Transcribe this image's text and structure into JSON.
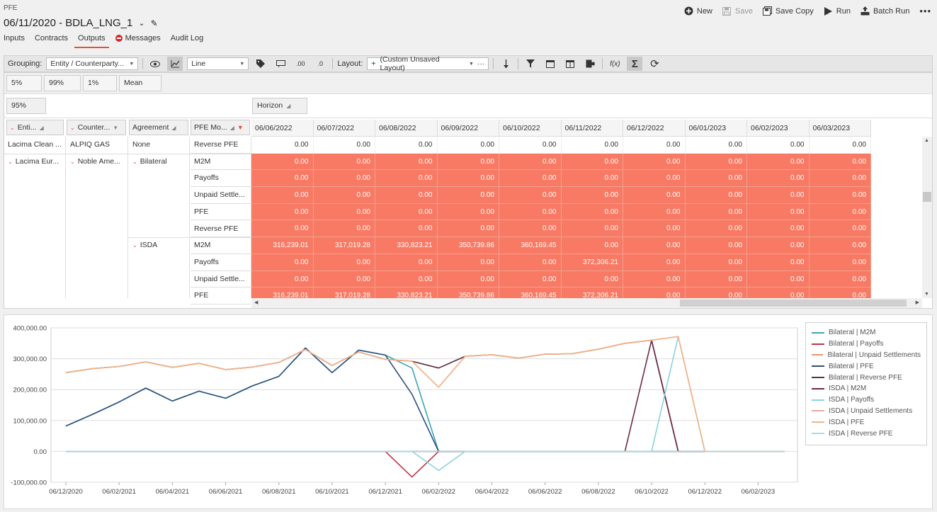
{
  "app_name": "PFE",
  "doc_title": "06/11/2020 - BDLA_LNG_1",
  "actions": [
    {
      "label": "New",
      "icon": "plus-circle-icon",
      "disabled": false
    },
    {
      "label": "Save",
      "icon": "floppy-disk-icon",
      "disabled": true
    },
    {
      "label": "Save Copy",
      "icon": "save-copy-icon",
      "disabled": false
    },
    {
      "label": "Run",
      "icon": "play-icon",
      "disabled": false
    },
    {
      "label": "Batch Run",
      "icon": "batch-run-icon",
      "disabled": false
    }
  ],
  "tabs": [
    {
      "label": "Inputs"
    },
    {
      "label": "Contracts"
    },
    {
      "label": "Outputs",
      "active": true
    },
    {
      "label": "Messages",
      "icon": "error-icon"
    },
    {
      "label": "Audit Log"
    }
  ],
  "toolbar": {
    "grouping_label": "Grouping:",
    "grouping_value": "Entity / Counterparty...",
    "chart_type_value": "Line",
    "layout_label": "Layout:",
    "layout_value": "(Custom Unsaved Layout)"
  },
  "percentiles": [
    "5%",
    "99%",
    "1%",
    "Mean"
  ],
  "selected_percentile": "95%",
  "horizon_label": "Horizon",
  "row_headers": [
    "Enti...",
    "Counter...",
    "Agreement",
    "PFE Mo..."
  ],
  "columns": [
    "06/06/2022",
    "06/07/2022",
    "06/08/2022",
    "06/09/2022",
    "06/10/2022",
    "06/11/2022",
    "06/12/2022",
    "06/01/2023",
    "06/02/2023",
    "06/03/2023"
  ],
  "group_labels": {
    "entity_1": "Lacima Clean ...",
    "counterparty_1": "ALPIQ GAS",
    "agreement_1": "None",
    "entity_2": "Lacima Eur...",
    "counterparty_2": "Noble Ame...",
    "agreement_bilateral": "Bilateral",
    "agreement_isda": "ISDA"
  },
  "rows": [
    {
      "measure": "Reverse PFE",
      "highlight": false,
      "values": [
        "0.00",
        "0.00",
        "0.00",
        "0.00",
        "0.00",
        "0.00",
        "0.00",
        "0.00",
        "0.00",
        "0.00"
      ]
    },
    {
      "measure": "M2M",
      "highlight": true,
      "values": [
        "0.00",
        "0.00",
        "0.00",
        "0.00",
        "0.00",
        "0.00",
        "0.00",
        "0.00",
        "0.00",
        "0.00"
      ]
    },
    {
      "measure": "Payoffs",
      "highlight": true,
      "values": [
        "0.00",
        "0.00",
        "0.00",
        "0.00",
        "0.00",
        "0.00",
        "0.00",
        "0.00",
        "0.00",
        "0.00"
      ]
    },
    {
      "measure": "Unpaid Settle...",
      "highlight": true,
      "values": [
        "0.00",
        "0.00",
        "0.00",
        "0.00",
        "0.00",
        "0.00",
        "0.00",
        "0.00",
        "0.00",
        "0.00"
      ]
    },
    {
      "measure": "PFE",
      "highlight": true,
      "values": [
        "0.00",
        "0.00",
        "0.00",
        "0.00",
        "0.00",
        "0.00",
        "0.00",
        "0.00",
        "0.00",
        "0.00"
      ]
    },
    {
      "measure": "Reverse PFE",
      "highlight": true,
      "values": [
        "0.00",
        "0.00",
        "0.00",
        "0.00",
        "0.00",
        "0.00",
        "0.00",
        "0.00",
        "0.00",
        "0.00"
      ]
    },
    {
      "measure": "M2M",
      "highlight": true,
      "values": [
        "316,239.01",
        "317,019.28",
        "330,823.21",
        "350,739.86",
        "360,169.45",
        "0.00",
        "0.00",
        "0.00",
        "0.00",
        "0.00"
      ]
    },
    {
      "measure": "Payoffs",
      "highlight": true,
      "values": [
        "0.00",
        "0.00",
        "0.00",
        "0.00",
        "0.00",
        "372,306.21",
        "0.00",
        "0.00",
        "0.00",
        "0.00"
      ]
    },
    {
      "measure": "Unpaid Settle...",
      "highlight": true,
      "values": [
        "0.00",
        "0.00",
        "0.00",
        "0.00",
        "0.00",
        "0.00",
        "0.00",
        "0.00",
        "0.00",
        "0.00"
      ]
    },
    {
      "measure": "PFE",
      "highlight": true,
      "values": [
        "316,239.01",
        "317,019.28",
        "330,823.21",
        "350,739.86",
        "360,169.45",
        "372,306.21",
        "0.00",
        "0.00",
        "0.00",
        "0.00"
      ]
    }
  ],
  "chart_data": {
    "type": "line",
    "x": [
      "06/12/2020",
      "06/01/2021",
      "06/02/2021",
      "06/03/2021",
      "06/04/2021",
      "06/05/2021",
      "06/06/2021",
      "06/07/2021",
      "06/08/2021",
      "06/09/2021",
      "06/10/2021",
      "06/11/2021",
      "06/12/2021",
      "06/01/2022",
      "06/02/2022",
      "06/03/2022",
      "06/04/2022",
      "06/05/2022",
      "06/06/2022",
      "06/07/2022",
      "06/08/2022",
      "06/09/2022",
      "06/10/2022",
      "06/11/2022",
      "06/12/2022",
      "06/01/2023",
      "06/02/2023",
      "06/03/2023"
    ],
    "x_tick_labels": [
      "06/12/2020",
      "06/02/2021",
      "06/04/2021",
      "06/06/2021",
      "06/08/2021",
      "06/10/2021",
      "06/12/2021",
      "06/02/2022",
      "06/04/2022",
      "06/06/2022",
      "06/08/2022",
      "06/10/2022",
      "06/12/2022",
      "06/02/2023"
    ],
    "y_tick_labels": [
      "400,000.00",
      "300,000.00",
      "200,000.00",
      "100,000.00",
      "0.00",
      "-100,000.00"
    ],
    "ylim": [
      -100000,
      400000
    ],
    "legend_position": "right",
    "series": [
      {
        "name": "Bilateral | M2M",
        "color": "#3aa5b5",
        "values": [
          82000,
          120000,
          160000,
          205000,
          163000,
          195000,
          172000,
          212000,
          243000,
          335000,
          255000,
          328000,
          312000,
          270000,
          0,
          0,
          0,
          0,
          0,
          0,
          0,
          0,
          0,
          0,
          0,
          0,
          0,
          0
        ]
      },
      {
        "name": "Bilateral | Payoffs",
        "color": "#c0323f",
        "values": [
          0,
          0,
          0,
          0,
          0,
          0,
          0,
          0,
          0,
          0,
          0,
          0,
          0,
          -83000,
          0,
          0,
          0,
          0,
          0,
          0,
          0,
          0,
          0,
          0,
          0,
          0,
          0,
          0
        ]
      },
      {
        "name": "Bilateral | Unpaid Settlements",
        "color": "#e8946a",
        "values": [
          255000,
          268000,
          275000,
          290000,
          272000,
          285000,
          265000,
          273000,
          288000,
          330000,
          278000,
          322000,
          298000,
          292000,
          270000,
          308000,
          313000,
          302000,
          315000,
          316000,
          331000,
          350000,
          360000,
          0,
          0,
          0,
          0,
          0
        ]
      },
      {
        "name": "Bilateral | PFE",
        "color": "#2c4f7c",
        "values": [
          82000,
          120000,
          160000,
          205000,
          163000,
          195000,
          172000,
          212000,
          243000,
          335000,
          255000,
          328000,
          312000,
          185000,
          0,
          0,
          0,
          0,
          0,
          0,
          0,
          0,
          0,
          0,
          0,
          0,
          0,
          0
        ]
      },
      {
        "name": "Bilateral | Reverse PFE",
        "color": "#5a3248",
        "values": [
          255000,
          268000,
          275000,
          290000,
          272000,
          285000,
          265000,
          273000,
          288000,
          330000,
          278000,
          322000,
          298000,
          292000,
          270000,
          308000,
          313000,
          302000,
          315000,
          316000,
          331000,
          350000,
          360000,
          0,
          0,
          0,
          0,
          0
        ]
      },
      {
        "name": "ISDA | M2M",
        "color": "#6b2d45",
        "values": [
          0,
          0,
          0,
          0,
          0,
          0,
          0,
          0,
          0,
          0,
          0,
          0,
          0,
          0,
          0,
          0,
          0,
          0,
          0,
          0,
          0,
          0,
          360000,
          0,
          0,
          0,
          0,
          0
        ]
      },
      {
        "name": "ISDA | Payoffs",
        "color": "#8ad3e0",
        "values": [
          0,
          0,
          0,
          0,
          0,
          0,
          0,
          0,
          0,
          0,
          0,
          0,
          0,
          0,
          -62000,
          0,
          0,
          0,
          0,
          0,
          0,
          0,
          0,
          372000,
          0,
          0,
          0,
          0
        ]
      },
      {
        "name": "ISDA | Unpaid Settlements",
        "color": "#f0a8a0",
        "values": [
          255000,
          268000,
          275000,
          290000,
          272000,
          285000,
          265000,
          273000,
          288000,
          330000,
          278000,
          322000,
          298000,
          292000,
          208000,
          308000,
          313000,
          302000,
          315000,
          316000,
          331000,
          350000,
          360000,
          372000,
          0,
          0,
          0,
          0
        ]
      },
      {
        "name": "ISDA | PFE",
        "color": "#f2b58a",
        "values": [
          255000,
          268000,
          275000,
          290000,
          272000,
          285000,
          265000,
          273000,
          288000,
          330000,
          278000,
          322000,
          298000,
          292000,
          208000,
          308000,
          313000,
          302000,
          315000,
          316000,
          331000,
          350000,
          360000,
          372000,
          0,
          0,
          0,
          0
        ]
      },
      {
        "name": "ISDA | Reverse PFE",
        "color": "#a8dce6",
        "values": [
          0,
          0,
          0,
          0,
          0,
          0,
          0,
          0,
          0,
          0,
          0,
          0,
          0,
          0,
          0,
          0,
          0,
          0,
          0,
          0,
          0,
          0,
          0,
          0,
          0,
          0,
          0,
          0
        ]
      }
    ]
  }
}
